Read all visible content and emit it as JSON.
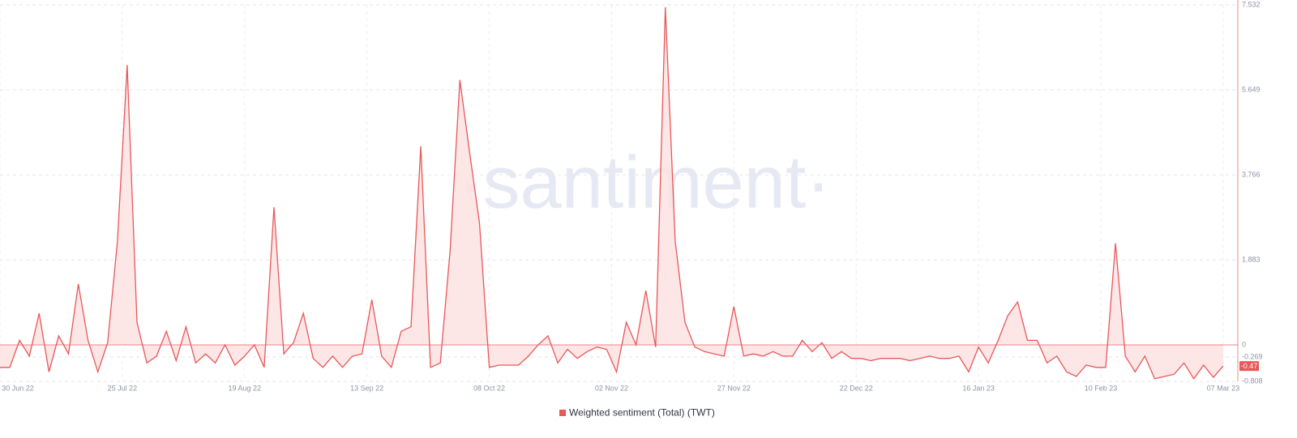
{
  "chart_data": {
    "type": "area",
    "watermark": "·santiment·",
    "x": [
      "30 Jun 22",
      "02 Jul 22",
      "04 Jul 22",
      "06 Jul 22",
      "08 Jul 22",
      "10 Jul 22",
      "12 Jul 22",
      "14 Jul 22",
      "16 Jul 22",
      "18 Jul 22",
      "20 Jul 22",
      "22 Jul 22",
      "24 Jul 22",
      "26 Jul 22",
      "28 Jul 22",
      "30 Jul 22",
      "01 Aug 22",
      "03 Aug 22",
      "05 Aug 22",
      "07 Aug 22",
      "09 Aug 22",
      "11 Aug 22",
      "13 Aug 22",
      "15 Aug 22",
      "17 Aug 22",
      "19 Aug 22",
      "21 Aug 22",
      "23 Aug 22",
      "25 Aug 22",
      "27 Aug 22",
      "29 Aug 22",
      "31 Aug 22",
      "02 Sep 22",
      "04 Sep 22",
      "06 Sep 22",
      "08 Sep 22",
      "10 Sep 22",
      "12 Sep 22",
      "14 Sep 22",
      "16 Sep 22",
      "18 Sep 22",
      "20 Sep 22",
      "22 Sep 22",
      "24 Sep 22",
      "26 Sep 22",
      "28 Sep 22",
      "30 Sep 22",
      "02 Oct 22",
      "04 Oct 22",
      "06 Oct 22",
      "08 Oct 22",
      "10 Oct 22",
      "12 Oct 22",
      "14 Oct 22",
      "16 Oct 22",
      "18 Oct 22",
      "20 Oct 22",
      "22 Oct 22",
      "24 Oct 22",
      "26 Oct 22",
      "28 Oct 22",
      "30 Oct 22",
      "01 Nov 22",
      "03 Nov 22",
      "05 Nov 22",
      "07 Nov 22",
      "09 Nov 22",
      "11 Nov 22",
      "13 Nov 22",
      "15 Nov 22",
      "17 Nov 22",
      "19 Nov 22",
      "21 Nov 22",
      "23 Nov 22",
      "25 Nov 22",
      "27 Nov 22",
      "29 Nov 22",
      "01 Dec 22",
      "03 Dec 22",
      "05 Dec 22",
      "07 Dec 22",
      "09 Dec 22",
      "11 Dec 22",
      "13 Dec 22",
      "15 Dec 22",
      "17 Dec 22",
      "19 Dec 22",
      "21 Dec 22",
      "23 Dec 22",
      "25 Dec 22",
      "27 Dec 22",
      "29 Dec 22",
      "31 Dec 22",
      "02 Jan 23",
      "04 Jan 23",
      "06 Jan 23",
      "08 Jan 23",
      "10 Jan 23",
      "12 Jan 23",
      "14 Jan 23",
      "16 Jan 23",
      "18 Jan 23",
      "20 Jan 23",
      "22 Jan 23",
      "24 Jan 23",
      "26 Jan 23",
      "28 Jan 23",
      "30 Jan 23",
      "01 Feb 23",
      "03 Feb 23",
      "05 Feb 23",
      "07 Feb 23",
      "09 Feb 23",
      "11 Feb 23",
      "13 Feb 23",
      "15 Feb 23",
      "17 Feb 23",
      "19 Feb 23",
      "21 Feb 23",
      "23 Feb 23",
      "25 Feb 23",
      "27 Feb 23",
      "01 Mar 23",
      "03 Mar 23",
      "05 Mar 23",
      "07 Mar 23"
    ],
    "series": [
      {
        "name": "Weighted sentiment (Total) (TWT)",
        "color": "#e8575a",
        "fill": "#fde0e0",
        "values": [
          -0.5,
          -0.5,
          0.1,
          -0.25,
          0.7,
          -0.6,
          0.2,
          -0.2,
          1.35,
          0.1,
          -0.6,
          0.05,
          2.3,
          6.2,
          0.5,
          -0.4,
          -0.25,
          0.3,
          -0.35,
          0.4,
          -0.4,
          -0.2,
          -0.4,
          0,
          -0.45,
          -0.25,
          0,
          -0.5,
          3.05,
          -0.2,
          0.05,
          0.7,
          -0.3,
          -0.5,
          -0.25,
          -0.5,
          -0.25,
          -0.2,
          1.0,
          -0.25,
          -0.5,
          0.3,
          0.4,
          4.4,
          -0.5,
          -0.4,
          2.1,
          5.87,
          4.25,
          2.7,
          -0.5,
          -0.45,
          -0.45,
          -0.45,
          -0.25,
          0,
          0.2,
          -0.4,
          -0.1,
          -0.3,
          -0.15,
          -0.05,
          -0.1,
          -0.6,
          0.5,
          0,
          1.2,
          -0.05,
          7.48,
          2.3,
          0.5,
          -0.05,
          -0.15,
          -0.2,
          -0.25,
          0.85,
          -0.25,
          -0.2,
          -0.25,
          -0.15,
          -0.25,
          -0.25,
          0.1,
          -0.15,
          0.05,
          -0.3,
          -0.15,
          -0.3,
          -0.3,
          -0.35,
          -0.3,
          -0.3,
          -0.3,
          -0.35,
          -0.3,
          -0.25,
          -0.3,
          -0.3,
          -0.25,
          -0.6,
          -0.05,
          -0.4,
          0.1,
          0.65,
          0.95,
          0.1,
          0.1,
          -0.4,
          -0.25,
          -0.6,
          -0.7,
          -0.45,
          -0.5,
          -0.5,
          2.25,
          -0.25,
          -0.6,
          -0.25,
          -0.75,
          -0.7,
          -0.65,
          -0.4,
          -0.75,
          -0.45,
          -0.72,
          -0.47
        ]
      }
    ],
    "last_value_label": "-0.47",
    "xlim": [
      "30 Jun 22",
      "10 Mar 23"
    ],
    "xticks": [
      "30 Jun 22",
      "25 Jul 22",
      "19 Aug 22",
      "13 Sep 22",
      "08 Oct 22",
      "02 Nov 22",
      "27 Nov 22",
      "22 Dec 22",
      "16 Jan 23",
      "10 Feb 23",
      "07 Mar 23"
    ],
    "ylim": [
      -0.808,
      7.532
    ],
    "yticks": [
      7.532,
      5.649,
      3.766,
      1.883,
      0,
      -0.269,
      -0.808
    ],
    "grid": true
  }
}
